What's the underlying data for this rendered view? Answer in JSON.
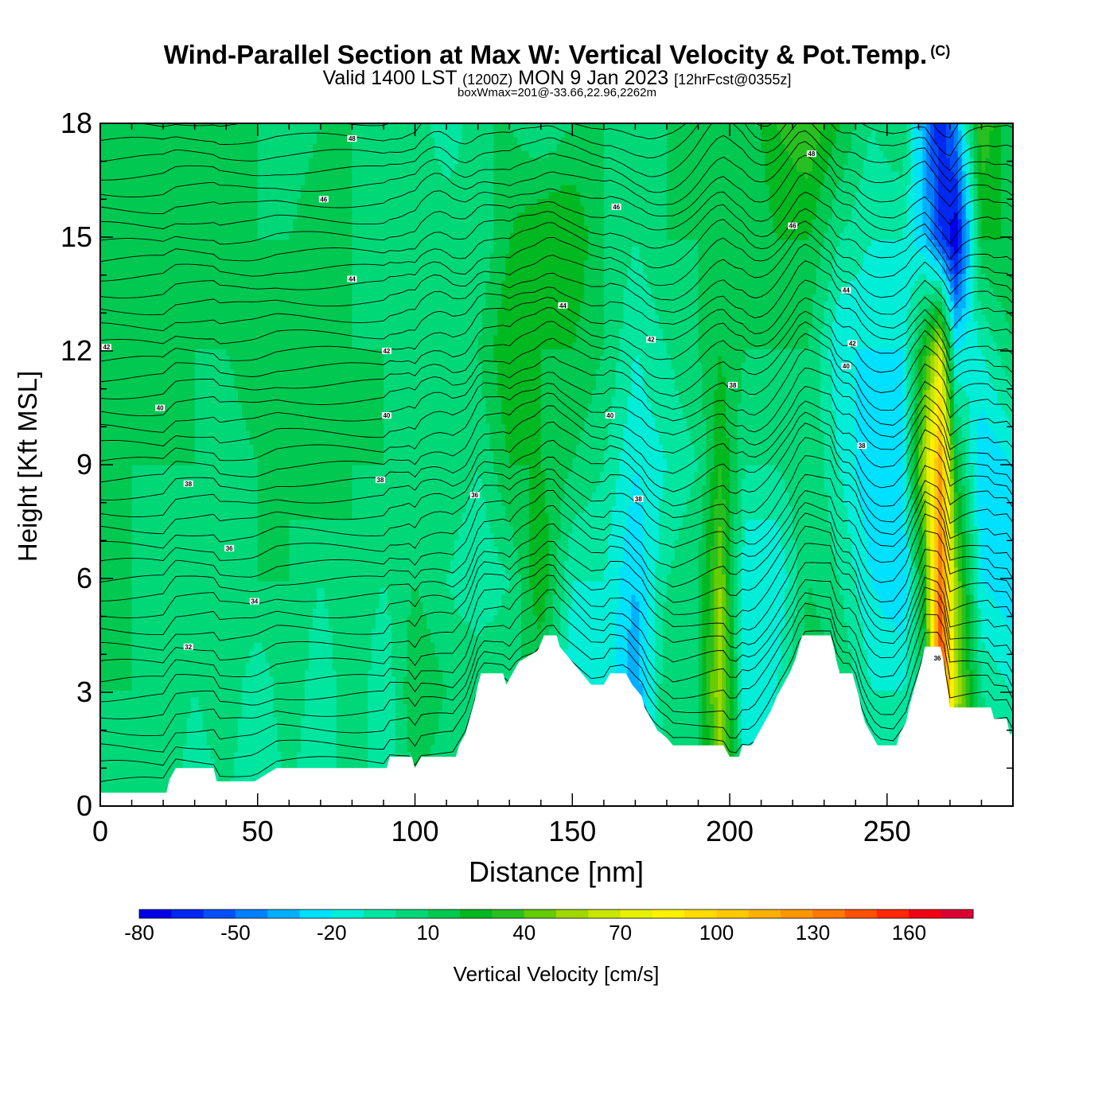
{
  "title": {
    "main": "Wind-Parallel Section at Max W: Vertical Velocity & Pot.Temp.",
    "copyright": "(C)",
    "valid_a": "Valid 1400 LST",
    "valid_b": "(1200Z)",
    "valid_c": "MON 9 Jan 2023",
    "valid_d": "[12hrFcst@0355z]",
    "box": "boxWmax=201@-33.66,22.96,2262m"
  },
  "chart_data": {
    "type": "heatmap",
    "xlabel": "Distance [nm]",
    "ylabel": "Height [Kft MSL]",
    "xlim": [
      0,
      290
    ],
    "ylim": [
      0,
      18
    ],
    "x_ticks": [
      0,
      50,
      100,
      150,
      200,
      250
    ],
    "y_ticks": [
      0,
      3,
      6,
      9,
      12,
      15,
      18
    ],
    "terrain": [
      [
        0,
        0.35
      ],
      [
        21,
        0.35
      ],
      [
        22,
        0.7
      ],
      [
        24,
        1.0
      ],
      [
        36,
        1.0
      ],
      [
        37,
        0.65
      ],
      [
        49,
        0.65
      ],
      [
        56,
        1.0
      ],
      [
        91,
        1.0
      ],
      [
        92,
        1.3
      ],
      [
        99,
        1.3
      ],
      [
        100,
        1.0
      ],
      [
        102,
        1.3
      ],
      [
        113,
        1.3
      ],
      [
        114,
        1.6
      ],
      [
        116,
        1.9
      ],
      [
        117,
        2.2
      ],
      [
        118,
        2.5
      ],
      [
        119,
        2.8
      ],
      [
        120,
        3.2
      ],
      [
        121,
        3.5
      ],
      [
        128,
        3.5
      ],
      [
        129,
        3.2
      ],
      [
        131,
        3.5
      ],
      [
        133,
        3.8
      ],
      [
        139,
        4.1
      ],
      [
        141,
        4.5
      ],
      [
        145,
        4.5
      ],
      [
        146,
        4.2
      ],
      [
        150,
        3.8
      ],
      [
        153,
        3.5
      ],
      [
        156,
        3.2
      ],
      [
        160,
        3.2
      ],
      [
        162,
        3.5
      ],
      [
        167,
        3.5
      ],
      [
        169,
        3.2
      ],
      [
        172,
        2.9
      ],
      [
        173,
        2.6
      ],
      [
        175,
        2.3
      ],
      [
        177,
        2.0
      ],
      [
        180,
        1.8
      ],
      [
        182,
        1.6
      ],
      [
        198,
        1.6
      ],
      [
        200,
        1.3
      ],
      [
        203,
        1.3
      ],
      [
        204,
        1.6
      ],
      [
        207,
        1.6
      ],
      [
        209,
        1.9
      ],
      [
        211,
        2.2
      ],
      [
        213,
        2.5
      ],
      [
        215,
        2.9
      ],
      [
        217,
        3.2
      ],
      [
        219,
        3.5
      ],
      [
        221,
        3.9
      ],
      [
        222,
        4.2
      ],
      [
        223,
        4.5
      ],
      [
        232,
        4.5
      ],
      [
        233,
        4.2
      ],
      [
        234,
        3.8
      ],
      [
        235,
        3.5
      ],
      [
        239,
        3.5
      ],
      [
        240,
        3.2
      ],
      [
        241,
        2.9
      ],
      [
        242,
        2.5
      ],
      [
        243,
        2.2
      ],
      [
        245,
        1.9
      ],
      [
        247,
        1.6
      ],
      [
        253,
        1.6
      ],
      [
        254,
        1.9
      ],
      [
        256,
        2.2
      ],
      [
        257,
        2.6
      ],
      [
        258,
        2.9
      ],
      [
        259,
        3.2
      ],
      [
        260,
        3.5
      ],
      [
        261,
        3.8
      ],
      [
        262,
        4.2
      ],
      [
        267,
        4.2
      ],
      [
        268,
        3.8
      ],
      [
        269,
        3.2
      ],
      [
        270,
        2.6
      ],
      [
        283,
        2.6
      ],
      [
        284,
        2.3
      ],
      [
        288,
        2.3
      ],
      [
        289,
        1.9
      ],
      [
        290,
        1.9
      ]
    ],
    "w_columns": [
      {
        "x": 0,
        "w": [
          10,
          10,
          10,
          10,
          10,
          10,
          10
        ]
      },
      {
        "x": 10,
        "w": [
          0,
          10,
          10,
          10,
          20,
          10,
          10
        ]
      },
      {
        "x": 20,
        "w": [
          10,
          10,
          0,
          10,
          10,
          10,
          20
        ]
      },
      {
        "x": 30,
        "w": [
          -10,
          0,
          10,
          10,
          10,
          10,
          10
        ]
      },
      {
        "x": 40,
        "w": [
          0,
          10,
          10,
          0,
          10,
          10,
          10
        ]
      },
      {
        "x": 50,
        "w": [
          -10,
          -10,
          10,
          10,
          20,
          10,
          10
        ]
      },
      {
        "x": 60,
        "w": [
          0,
          10,
          10,
          10,
          10,
          10,
          0
        ]
      },
      {
        "x": 70,
        "w": [
          -10,
          -10,
          0,
          20,
          20,
          20,
          10
        ]
      },
      {
        "x": 80,
        "w": [
          10,
          10,
          10,
          10,
          10,
          10,
          10
        ]
      },
      {
        "x": 90,
        "w": [
          -10,
          -10,
          0,
          10,
          10,
          0,
          0
        ]
      },
      {
        "x": 100,
        "w": [
          10,
          20,
          10,
          10,
          0,
          10,
          10
        ]
      },
      {
        "x": 110,
        "w": [
          0,
          10,
          0,
          10,
          10,
          10,
          -10
        ]
      },
      {
        "x": 120,
        "w": [
          10,
          10,
          -10,
          0,
          10,
          0,
          10
        ]
      },
      {
        "x": 130,
        "w": [
          20,
          10,
          0,
          20,
          30,
          20,
          10
        ]
      },
      {
        "x": 140,
        "w": [
          0,
          10,
          30,
          20,
          20,
          30,
          0
        ]
      },
      {
        "x": 150,
        "w": [
          0,
          -20,
          -10,
          10,
          20,
          30,
          10
        ]
      },
      {
        "x": 160,
        "w": [
          0,
          -10,
          -10,
          0,
          10,
          10,
          10
        ]
      },
      {
        "x": 170,
        "w": [
          -20,
          -40,
          -30,
          -20,
          -10,
          0,
          10
        ]
      },
      {
        "x": 180,
        "w": [
          0,
          10,
          0,
          -10,
          0,
          10,
          10
        ]
      },
      {
        "x": 190,
        "w": [
          10,
          10,
          10,
          0,
          10,
          10,
          10
        ]
      },
      {
        "x": 197,
        "w": [
          40,
          60,
          50,
          30,
          20,
          10,
          10
        ]
      },
      {
        "x": 205,
        "w": [
          -10,
          -20,
          -20,
          0,
          10,
          10,
          10
        ]
      },
      {
        "x": 215,
        "w": [
          0,
          -10,
          -20,
          0,
          10,
          20,
          30
        ]
      },
      {
        "x": 225,
        "w": [
          10,
          20,
          10,
          10,
          10,
          20,
          40
        ]
      },
      {
        "x": 235,
        "w": [
          30,
          10,
          0,
          -10,
          -20,
          0,
          20
        ]
      },
      {
        "x": 245,
        "w": [
          0,
          -10,
          -20,
          -30,
          -20,
          -10,
          0
        ]
      },
      {
        "x": 255,
        "w": [
          10,
          -10,
          -30,
          -20,
          -20,
          -10,
          10
        ]
      },
      {
        "x": 262,
        "w": [
          20,
          10,
          30,
          60,
          30,
          -30,
          -40
        ]
      },
      {
        "x": 267,
        "w": [
          170,
          160,
          140,
          120,
          70,
          -60,
          -70
        ]
      },
      {
        "x": 272,
        "w": [
          40,
          60,
          50,
          20,
          -20,
          -80,
          -40
        ]
      },
      {
        "x": 280,
        "w": [
          10,
          0,
          -20,
          -30,
          -10,
          20,
          40
        ]
      },
      {
        "x": 290,
        "w": [
          10,
          -10,
          -30,
          -20,
          10,
          20,
          10
        ]
      }
    ],
    "w_levels_kft": [
      0,
      3,
      6,
      9,
      12,
      15,
      18
    ],
    "theta_labels": [
      {
        "x": 2,
        "y": 12.1,
        "text": "42"
      },
      {
        "x": 19,
        "y": 10.5,
        "text": "40"
      },
      {
        "x": 28,
        "y": 8.5,
        "text": "38"
      },
      {
        "x": 41,
        "y": 6.8,
        "text": "36"
      },
      {
        "x": 49,
        "y": 5.4,
        "text": "34"
      },
      {
        "x": 28,
        "y": 4.2,
        "text": "32"
      },
      {
        "x": 71,
        "y": 16.0,
        "text": "46"
      },
      {
        "x": 80,
        "y": 17.6,
        "text": "48"
      },
      {
        "x": 80,
        "y": 13.9,
        "text": "44"
      },
      {
        "x": 91,
        "y": 12.0,
        "text": "42"
      },
      {
        "x": 91,
        "y": 10.3,
        "text": "40"
      },
      {
        "x": 89,
        "y": 8.6,
        "text": "38"
      },
      {
        "x": 119,
        "y": 8.2,
        "text": "36"
      },
      {
        "x": 147,
        "y": 13.2,
        "text": "44"
      },
      {
        "x": 164,
        "y": 15.8,
        "text": "46"
      },
      {
        "x": 175,
        "y": 12.3,
        "text": "42"
      },
      {
        "x": 162,
        "y": 10.3,
        "text": "40"
      },
      {
        "x": 171,
        "y": 8.1,
        "text": "38"
      },
      {
        "x": 201,
        "y": 11.1,
        "text": "38"
      },
      {
        "x": 226,
        "y": 17.2,
        "text": "48"
      },
      {
        "x": 220,
        "y": 15.3,
        "text": "46"
      },
      {
        "x": 237,
        "y": 13.6,
        "text": "44"
      },
      {
        "x": 239,
        "y": 12.2,
        "text": "42"
      },
      {
        "x": 237,
        "y": 11.6,
        "text": "40"
      },
      {
        "x": 242,
        "y": 9.5,
        "text": "38"
      },
      {
        "x": 266,
        "y": 3.9,
        "text": "36"
      }
    ],
    "colorbar": {
      "label": "Vertical Velocity [cm/s]",
      "min": -80,
      "max": 180,
      "step": 10,
      "tick_values": [
        -80,
        -50,
        -20,
        10,
        40,
        70,
        100,
        130,
        160
      ],
      "tick_labels": [
        "-80",
        "-50",
        "-20",
        "10",
        "40",
        "70",
        "100",
        "130",
        "160"
      ],
      "colors": [
        "#0000e6",
        "#0028f0",
        "#0050fa",
        "#0080ff",
        "#00b0ff",
        "#00e0ff",
        "#00eed8",
        "#00e6a0",
        "#00d878",
        "#00c850",
        "#00b820",
        "#28c020",
        "#64cc00",
        "#a0d800",
        "#c8e600",
        "#e6f000",
        "#fff000",
        "#ffdc00",
        "#ffc800",
        "#ffb000",
        "#ff9600",
        "#ff7800",
        "#ff5000",
        "#ff2800",
        "#f00014",
        "#dc0032"
      ]
    }
  }
}
